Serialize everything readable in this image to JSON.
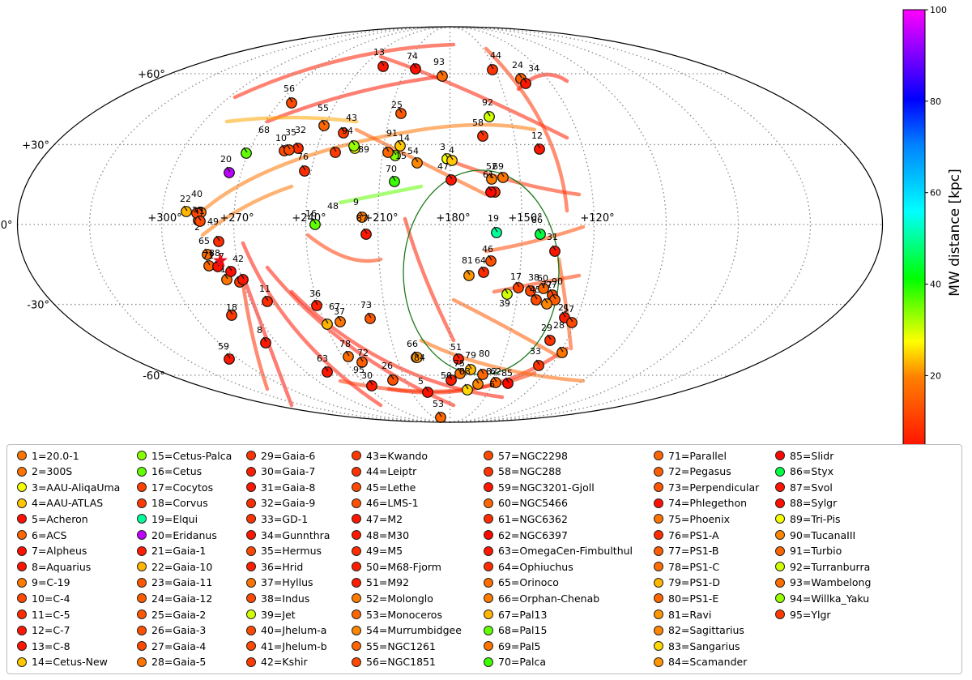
{
  "chart_data": {
    "type": "scatter",
    "projection": "mollweide",
    "grid": true,
    "lon_ticks": [
      "+300°",
      "+270°",
      "+240°",
      "+210°",
      "+180°",
      "+150°",
      "+120°"
    ],
    "lat_ticks": [
      "+60°",
      "+30°",
      "0°",
      "-30°",
      "-60°"
    ],
    "colorbar": {
      "label": "MW distance [kpc]",
      "range": [
        2,
        100
      ],
      "ticks": [
        "20",
        "40",
        "60",
        "80",
        "100"
      ]
    },
    "legend_location": "bottom",
    "streams": [
      {
        "id": "1",
        "name": "20.0-1",
        "dist": 18
      },
      {
        "id": "2",
        "name": "300S",
        "dist": 18
      },
      {
        "id": "3",
        "name": "AAU-AliqaUma",
        "dist": 28
      },
      {
        "id": "4",
        "name": "AAU-ATLAS",
        "dist": 24
      },
      {
        "id": "5",
        "name": "Acheron",
        "dist": 4
      },
      {
        "id": "6",
        "name": "ACS",
        "dist": 16
      },
      {
        "id": "7",
        "name": "Alpheus",
        "dist": 4
      },
      {
        "id": "8",
        "name": "Aquarius",
        "dist": 5
      },
      {
        "id": "9",
        "name": "C-19",
        "dist": 19
      },
      {
        "id": "10",
        "name": "C-4",
        "dist": 12
      },
      {
        "id": "11",
        "name": "C-5",
        "dist": 8
      },
      {
        "id": "12",
        "name": "C-7",
        "dist": 5
      },
      {
        "id": "13",
        "name": "C-8",
        "dist": 5
      },
      {
        "id": "14",
        "name": "Cetus-New",
        "dist": 24
      },
      {
        "id": "15",
        "name": "Cetus-Palca",
        "dist": 34
      },
      {
        "id": "16",
        "name": "Cetus",
        "dist": 36
      },
      {
        "id": "17",
        "name": "Cocytos",
        "dist": 11
      },
      {
        "id": "18",
        "name": "Corvus",
        "dist": 10
      },
      {
        "id": "19",
        "name": "Elqui",
        "dist": 50
      },
      {
        "id": "20",
        "name": "Eridanus",
        "dist": 95
      },
      {
        "id": "21",
        "name": "Gaia-1",
        "dist": 6
      },
      {
        "id": "22",
        "name": "Gaia-10",
        "dist": 23
      },
      {
        "id": "23",
        "name": "Gaia-11",
        "dist": 14
      },
      {
        "id": "24",
        "name": "Gaia-12",
        "dist": 15
      },
      {
        "id": "25",
        "name": "Gaia-2",
        "dist": 14
      },
      {
        "id": "26",
        "name": "Gaia-3",
        "dist": 13
      },
      {
        "id": "27",
        "name": "Gaia-4",
        "dist": 12
      },
      {
        "id": "28",
        "name": "Gaia-5",
        "dist": 18
      },
      {
        "id": "29",
        "name": "Gaia-6",
        "dist": 9
      },
      {
        "id": "30",
        "name": "Gaia-7",
        "dist": 6
      },
      {
        "id": "31",
        "name": "Gaia-8",
        "dist": 5
      },
      {
        "id": "32",
        "name": "Gaia-9",
        "dist": 8
      },
      {
        "id": "33",
        "name": "GD-1",
        "dist": 9
      },
      {
        "id": "34",
        "name": "Gunnthra",
        "dist": 5
      },
      {
        "id": "35",
        "name": "Hermus",
        "dist": 12
      },
      {
        "id": "36",
        "name": "Hrid",
        "dist": 6
      },
      {
        "id": "37",
        "name": "Hyllus",
        "dist": 18
      },
      {
        "id": "38",
        "name": "Indus",
        "dist": 12
      },
      {
        "id": "39",
        "name": "Jet",
        "dist": 30
      },
      {
        "id": "40",
        "name": "Jhelum-a",
        "dist": 12
      },
      {
        "id": "41",
        "name": "Jhelum-b",
        "dist": 12
      },
      {
        "id": "42",
        "name": "Kshir",
        "dist": 10
      },
      {
        "id": "43",
        "name": "Kwando",
        "dist": 10
      },
      {
        "id": "44",
        "name": "Leiptr",
        "dist": 9
      },
      {
        "id": "45",
        "name": "Lethe",
        "dist": 12
      },
      {
        "id": "46",
        "name": "LMS-1",
        "dist": 13
      },
      {
        "id": "47",
        "name": "M2",
        "dist": 5
      },
      {
        "id": "48",
        "name": "M30",
        "dist": 5
      },
      {
        "id": "49",
        "name": "M5",
        "dist": 8
      },
      {
        "id": "50",
        "name": "M68-Fjorm",
        "dist": 6
      },
      {
        "id": "51",
        "name": "M92",
        "dist": 6
      },
      {
        "id": "52",
        "name": "Molonglo",
        "dist": 19
      },
      {
        "id": "53",
        "name": "Monoceros",
        "dist": 16
      },
      {
        "id": "54",
        "name": "Murrumbidgee",
        "dist": 20
      },
      {
        "id": "55",
        "name": "NGC1261",
        "dist": 16
      },
      {
        "id": "56",
        "name": "NGC1851",
        "dist": 12
      },
      {
        "id": "57",
        "name": "NGC2298",
        "dist": 12
      },
      {
        "id": "58",
        "name": "NGC288",
        "dist": 9
      },
      {
        "id": "59",
        "name": "NGC3201-Gjoll",
        "dist": 5
      },
      {
        "id": "60",
        "name": "NGC5466",
        "dist": 16
      },
      {
        "id": "61",
        "name": "NGC6362",
        "dist": 8
      },
      {
        "id": "62",
        "name": "NGC6397",
        "dist": 3
      },
      {
        "id": "63",
        "name": "OmegaCen-Fimbulthul",
        "dist": 5
      },
      {
        "id": "64",
        "name": "Ophiuchus",
        "dist": 8
      },
      {
        "id": "65",
        "name": "Orinoco",
        "dist": 17
      },
      {
        "id": "66",
        "name": "Orphan-Chenab",
        "dist": 19
      },
      {
        "id": "67",
        "name": "Pal13",
        "dist": 23
      },
      {
        "id": "68",
        "name": "Pal15",
        "dist": 36
      },
      {
        "id": "69",
        "name": "Pal5",
        "dist": 18
      },
      {
        "id": "70",
        "name": "Palca",
        "dist": 38
      },
      {
        "id": "71",
        "name": "Parallel",
        "dist": 16
      },
      {
        "id": "72",
        "name": "Pegasus",
        "dist": 15
      },
      {
        "id": "73",
        "name": "Perpendicular",
        "dist": 14
      },
      {
        "id": "74",
        "name": "Phlegethon",
        "dist": 4
      },
      {
        "id": "75",
        "name": "Phoenix",
        "dist": 18
      },
      {
        "id": "76",
        "name": "PS1-A",
        "dist": 8
      },
      {
        "id": "77",
        "name": "PS1-B",
        "dist": 15
      },
      {
        "id": "78",
        "name": "PS1-C",
        "dist": 17
      },
      {
        "id": "79",
        "name": "PS1-D",
        "dist": 23
      },
      {
        "id": "80",
        "name": "PS1-E",
        "dist": 16
      },
      {
        "id": "81",
        "name": "Ravi",
        "dist": 21
      },
      {
        "id": "82",
        "name": "Sagittarius",
        "dist": 20
      },
      {
        "id": "83",
        "name": "Sangarius",
        "dist": 25
      },
      {
        "id": "84",
        "name": "Scamander",
        "dist": 21
      },
      {
        "id": "85",
        "name": "Slidr",
        "dist": 3
      },
      {
        "id": "86",
        "name": "Styx",
        "dist": 45
      },
      {
        "id": "87",
        "name": "Svol",
        "dist": 5
      },
      {
        "id": "88",
        "name": "Sylgr",
        "dist": 4
      },
      {
        "id": "89",
        "name": "Tri-Pis",
        "dist": 28
      },
      {
        "id": "90",
        "name": "TucanaIII",
        "dist": 20
      },
      {
        "id": "91",
        "name": "Turbio",
        "dist": 16
      },
      {
        "id": "92",
        "name": "Turranburra",
        "dist": 30
      },
      {
        "id": "93",
        "name": "Wambelong",
        "dist": 17
      },
      {
        "id": "94",
        "name": "Willka_Yaku",
        "dist": 33
      },
      {
        "id": "95",
        "name": "Ylgr",
        "dist": 10
      }
    ]
  }
}
